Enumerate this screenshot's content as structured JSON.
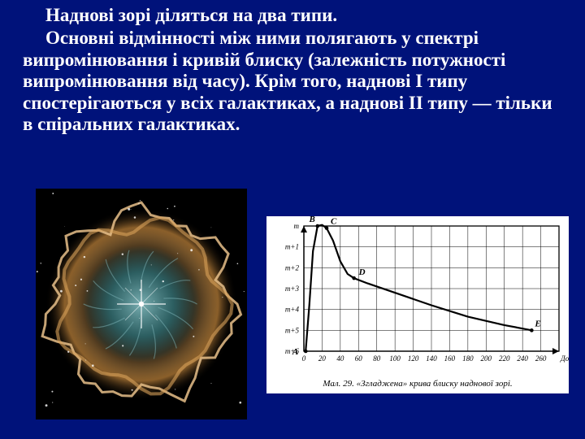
{
  "text": {
    "p1": "Наднові зорі діляться на два типи.",
    "p2": "Основні відмінності між ними полягають у спектрі випромінювання і кривій блиску (залежність потужності випромінювання від часу). Крім того, наднові I типу спостерігаються у всіх галактиках, а наднові II типу — тільки в спіральних галактиках."
  },
  "nebula": {
    "bg": "#000000",
    "halo_outer": "#a37032",
    "halo_mid": "#d9a25a",
    "filaments": "#e8c08a",
    "inner_glow": "#2f6a6e",
    "inner_light": "#7fb8bb",
    "core": "#ffffff",
    "stars": "#ffffff"
  },
  "chart": {
    "type": "line",
    "caption": "Мал. 29. «Згладжена» крива блиску наднової зорі.",
    "x_label": "Доби",
    "y_label_top": "m",
    "y_labels": [
      "m",
      "m+1",
      "m+2",
      "m+3",
      "m+4",
      "m+5",
      "m+6"
    ],
    "x_ticks": [
      0,
      20,
      40,
      60,
      80,
      100,
      120,
      140,
      160,
      180,
      200,
      220,
      240,
      260
    ],
    "points_named": {
      "A": {
        "x": 2,
        "y": 6
      },
      "B": {
        "x": 15,
        "y": 0
      },
      "C": {
        "x": 25,
        "y": 0.1
      },
      "D": {
        "x": 55,
        "y": 2.5
      },
      "E": {
        "x": 250,
        "y": 5.0
      }
    },
    "curve_points": [
      {
        "x": 2,
        "y": 6.0
      },
      {
        "x": 6,
        "y": 3.8
      },
      {
        "x": 10,
        "y": 1.2
      },
      {
        "x": 15,
        "y": 0.0
      },
      {
        "x": 20,
        "y": -0.05
      },
      {
        "x": 25,
        "y": 0.1
      },
      {
        "x": 32,
        "y": 0.7
      },
      {
        "x": 40,
        "y": 1.7
      },
      {
        "x": 48,
        "y": 2.3
      },
      {
        "x": 55,
        "y": 2.5
      },
      {
        "x": 70,
        "y": 2.75
      },
      {
        "x": 100,
        "y": 3.2
      },
      {
        "x": 140,
        "y": 3.8
      },
      {
        "x": 180,
        "y": 4.35
      },
      {
        "x": 220,
        "y": 4.75
      },
      {
        "x": 250,
        "y": 5.0
      }
    ],
    "xlim": [
      0,
      280
    ],
    "ylim": [
      0,
      6
    ],
    "line_color": "#000000",
    "grid_color": "#000000",
    "grid_width": 0.5,
    "axis_width": 1.3,
    "tick_fontsize": 9,
    "ylabel_fontsize": 9,
    "line_width": 2.2,
    "background_color": "#ffffff"
  }
}
